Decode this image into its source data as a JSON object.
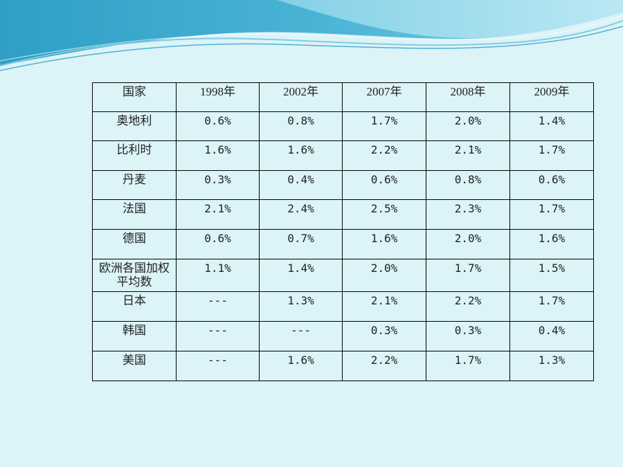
{
  "slide": {
    "colors": {
      "background": "#dcf3f8",
      "banner_dark": "#2a9fc4",
      "banner_light": "#9fdcee"
    }
  },
  "table": {
    "header": [
      "国家",
      "1998年",
      "2002年",
      "2007年",
      "2008年",
      "2009年"
    ],
    "rows": [
      {
        "country": "奥地利",
        "values": [
          "0.6%",
          "0.8%",
          "1.7%",
          "2.0%",
          "1.4%"
        ]
      },
      {
        "country": "比利时",
        "values": [
          "1.6%",
          "1.6%",
          "2.2%",
          "2.1%",
          "1.7%"
        ]
      },
      {
        "country": "丹麦",
        "values": [
          "0.3%",
          "0.4%",
          "0.6%",
          "0.8%",
          "0.6%"
        ]
      },
      {
        "country": "法国",
        "values": [
          "2.1%",
          "2.4%",
          "2.5%",
          "2.3%",
          "1.7%"
        ]
      },
      {
        "country": "德国",
        "values": [
          "0.6%",
          "0.7%",
          "1.6%",
          "2.0%",
          "1.6%"
        ]
      },
      {
        "country": "欧洲各国加权平均数",
        "values": [
          "1.1%",
          "1.4%",
          "2.0%",
          "1.7%",
          "1.5%"
        ]
      },
      {
        "country": "日本",
        "values": [
          "---",
          "1.3%",
          "2.1%",
          "2.2%",
          "1.7%"
        ]
      },
      {
        "country": "韩国",
        "values": [
          "---",
          "---",
          "0.3%",
          "0.3%",
          "0.4%"
        ]
      },
      {
        "country": "美国",
        "values": [
          "---",
          "1.6%",
          "2.2%",
          "1.7%",
          "1.3%"
        ]
      }
    ]
  }
}
